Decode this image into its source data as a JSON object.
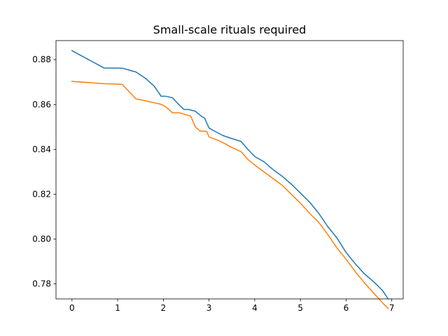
{
  "chart_data": {
    "type": "line",
    "title": "Small-scale rituals required",
    "xlabel": "",
    "ylabel": "",
    "xlim": [
      -0.35,
      7.25
    ],
    "ylim": [
      0.7733,
      0.8885
    ],
    "xticks": [
      0,
      1,
      2,
      3,
      4,
      5,
      6,
      7
    ],
    "xtick_labels": [
      "0",
      "1",
      "2",
      "3",
      "4",
      "5",
      "6",
      "7"
    ],
    "yticks": [
      0.78,
      0.8,
      0.82,
      0.84,
      0.86,
      0.88
    ],
    "ytick_labels": [
      "0.78",
      "0.80",
      "0.82",
      "0.84",
      "0.86",
      "0.88"
    ],
    "grid": false,
    "legend": "none",
    "series": [
      {
        "color": "#1f77b4",
        "x": [
          0,
          0.7,
          1.1,
          1.4,
          1.6,
          1.8,
          1.95,
          2.05,
          2.2,
          2.35,
          2.45,
          2.55,
          2.7,
          2.85,
          2.9,
          3.0,
          3.15,
          3.3,
          3.5,
          3.7,
          3.85,
          4.0,
          4.2,
          4.4,
          4.6,
          4.8,
          5.0,
          5.2,
          5.4,
          5.6,
          5.8,
          6.0,
          6.2,
          6.4,
          6.6,
          6.8,
          6.92
        ],
        "y": [
          0.884,
          0.8763,
          0.8762,
          0.8745,
          0.8718,
          0.8682,
          0.8637,
          0.8637,
          0.863,
          0.8597,
          0.8578,
          0.8578,
          0.857,
          0.8545,
          0.854,
          0.8495,
          0.8478,
          0.8462,
          0.8448,
          0.8435,
          0.84,
          0.8368,
          0.8345,
          0.831,
          0.828,
          0.8245,
          0.8205,
          0.8165,
          0.8115,
          0.8055,
          0.8005,
          0.794,
          0.789,
          0.7845,
          0.781,
          0.777,
          0.7733
        ]
      },
      {
        "color": "#ff7f0e",
        "x": [
          0,
          0.7,
          1.1,
          1.4,
          1.6,
          1.95,
          2.05,
          2.2,
          2.35,
          2.6,
          2.7,
          2.8,
          2.95,
          3.0,
          3.2,
          3.35,
          3.5,
          3.7,
          3.85,
          4.0,
          4.2,
          4.4,
          4.6,
          4.8,
          5.0,
          5.2,
          5.4,
          5.6,
          5.8,
          6.0,
          6.2,
          6.4,
          6.6,
          6.8,
          6.92
        ],
        "y": [
          0.8703,
          0.8693,
          0.869,
          0.8625,
          0.8617,
          0.8601,
          0.859,
          0.8563,
          0.8563,
          0.8548,
          0.85,
          0.8482,
          0.848,
          0.8455,
          0.844,
          0.8425,
          0.8408,
          0.839,
          0.8355,
          0.833,
          0.83,
          0.827,
          0.824,
          0.82,
          0.816,
          0.8115,
          0.8075,
          0.802,
          0.796,
          0.791,
          0.7855,
          0.7805,
          0.776,
          0.7715,
          0.769
        ]
      }
    ]
  }
}
